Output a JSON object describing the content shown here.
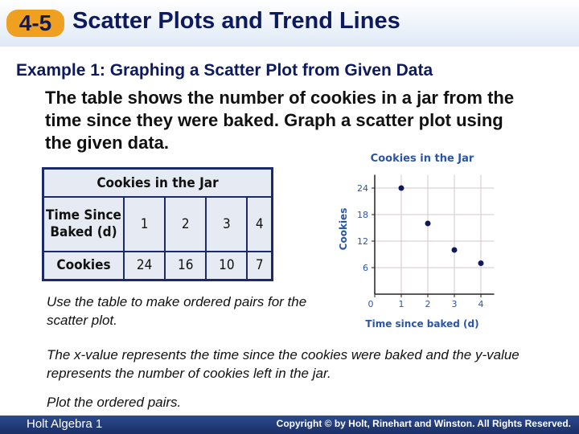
{
  "header": {
    "number": "4-5",
    "title": "Scatter Plots and Trend Lines"
  },
  "example_title": "Example 1: Graphing a Scatter Plot from Given Data",
  "intro": "The table shows the number of cookies in a jar from the time since they were baked. Graph a scatter plot using the given data.",
  "table": {
    "title": "Cookies in the Jar",
    "rows": [
      [
        "Time Since Baked (d)",
        1,
        2,
        3,
        4
      ],
      [
        "Cookies",
        24,
        16,
        10,
        7
      ]
    ]
  },
  "chart_data": {
    "type": "scatter",
    "title": "Cookies in the Jar",
    "x_label": "Time since baked (d)",
    "y_label": "Cookies",
    "x": [
      1,
      2,
      3,
      4
    ],
    "y": [
      24,
      16,
      10,
      7
    ],
    "color": "#101a5a",
    "xlim": [
      0,
      4.5
    ],
    "ylim": [
      0,
      27
    ],
    "xticks": [
      0,
      1,
      2,
      3,
      4
    ],
    "yticks": [
      6,
      12,
      18,
      24
    ],
    "grid": true
  },
  "notes": [
    "Use the table to make ordered pairs for the scatter plot.",
    "The x-value represents the time since the cookies were baked and the y-value represents the number of cookies left in the jar.",
    "Plot the ordered pairs."
  ],
  "footer": {
    "left": "Holt Algebra 1",
    "right": "Copyright © by Holt, Rinehart and Winston. All Rights Reserved."
  }
}
